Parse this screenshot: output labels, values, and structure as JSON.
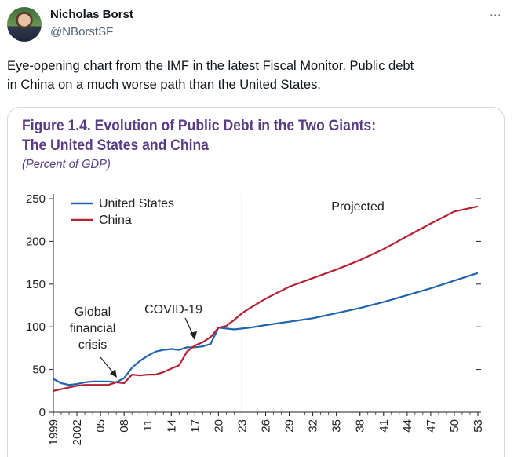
{
  "author": {
    "name": "Nicholas Borst",
    "handle": "@NBorstSF"
  },
  "tweet": {
    "text_line1": "Eye-opening chart from the IMF in the latest Fiscal Monitor. Public debt",
    "text_line2": "in China on a much worse path than the United States."
  },
  "more_icon": "⋯",
  "colors": {
    "title": "#5a3b86",
    "us": "#1f64ad",
    "china": "#b52234"
  },
  "chart_data": {
    "type": "line",
    "title_line1": "Figure 1.4. Evolution of Public Debt in the Two Giants:",
    "title_line2": "The United States and China",
    "subtitle": "(Percent of GDP)",
    "xlabel": "",
    "ylabel": "",
    "ylim": [
      0,
      250
    ],
    "xlim": [
      1999,
      2053
    ],
    "yticks": [
      0,
      50,
      100,
      150,
      200,
      250
    ],
    "xtick_labels": [
      "1999",
      "2002",
      "05",
      "08",
      "11",
      "14",
      "17",
      "20",
      "23",
      "26",
      "29",
      "32",
      "35",
      "38",
      "41",
      "44",
      "47",
      "50",
      "53"
    ],
    "projection_start": 2023,
    "legend": [
      "United States",
      "China"
    ],
    "annotations": [
      {
        "label": "Projected"
      },
      {
        "label": "COVID-19"
      },
      {
        "label_lines": [
          "Global",
          "financial",
          "crisis"
        ]
      }
    ],
    "series": [
      {
        "name": "United States",
        "x": [
          1999,
          2000,
          2001,
          2002,
          2003,
          2004,
          2005,
          2006,
          2007,
          2008,
          2009,
          2010,
          2011,
          2012,
          2013,
          2014,
          2015,
          2016,
          2017,
          2018,
          2019,
          2020,
          2021,
          2022,
          2023,
          2024,
          2026,
          2029,
          2032,
          2035,
          2038,
          2041,
          2044,
          2047,
          2050,
          2053
        ],
        "values": [
          39,
          34,
          32,
          33,
          35,
          36,
          36,
          36,
          35,
          40,
          52,
          60,
          66,
          71,
          73,
          74,
          73,
          76,
          76,
          77,
          80,
          99,
          98,
          97,
          98,
          99,
          102,
          106,
          110,
          116,
          122,
          129,
          137,
          145,
          154,
          163
        ]
      },
      {
        "name": "China",
        "x": [
          1999,
          2000,
          2001,
          2002,
          2003,
          2004,
          2005,
          2006,
          2007,
          2008,
          2009,
          2010,
          2011,
          2012,
          2013,
          2014,
          2015,
          2016,
          2017,
          2018,
          2019,
          2020,
          2021,
          2022,
          2023,
          2024,
          2026,
          2029,
          2032,
          2035,
          2038,
          2041,
          2044,
          2047,
          2050,
          2053
        ],
        "values": [
          25,
          27,
          29,
          31,
          32,
          32,
          32,
          32,
          35,
          34,
          44,
          43,
          44,
          44,
          47,
          51,
          55,
          71,
          78,
          82,
          88,
          99,
          101,
          108,
          116,
          122,
          133,
          147,
          157,
          167,
          178,
          191,
          206,
          221,
          235,
          241
        ]
      }
    ]
  }
}
